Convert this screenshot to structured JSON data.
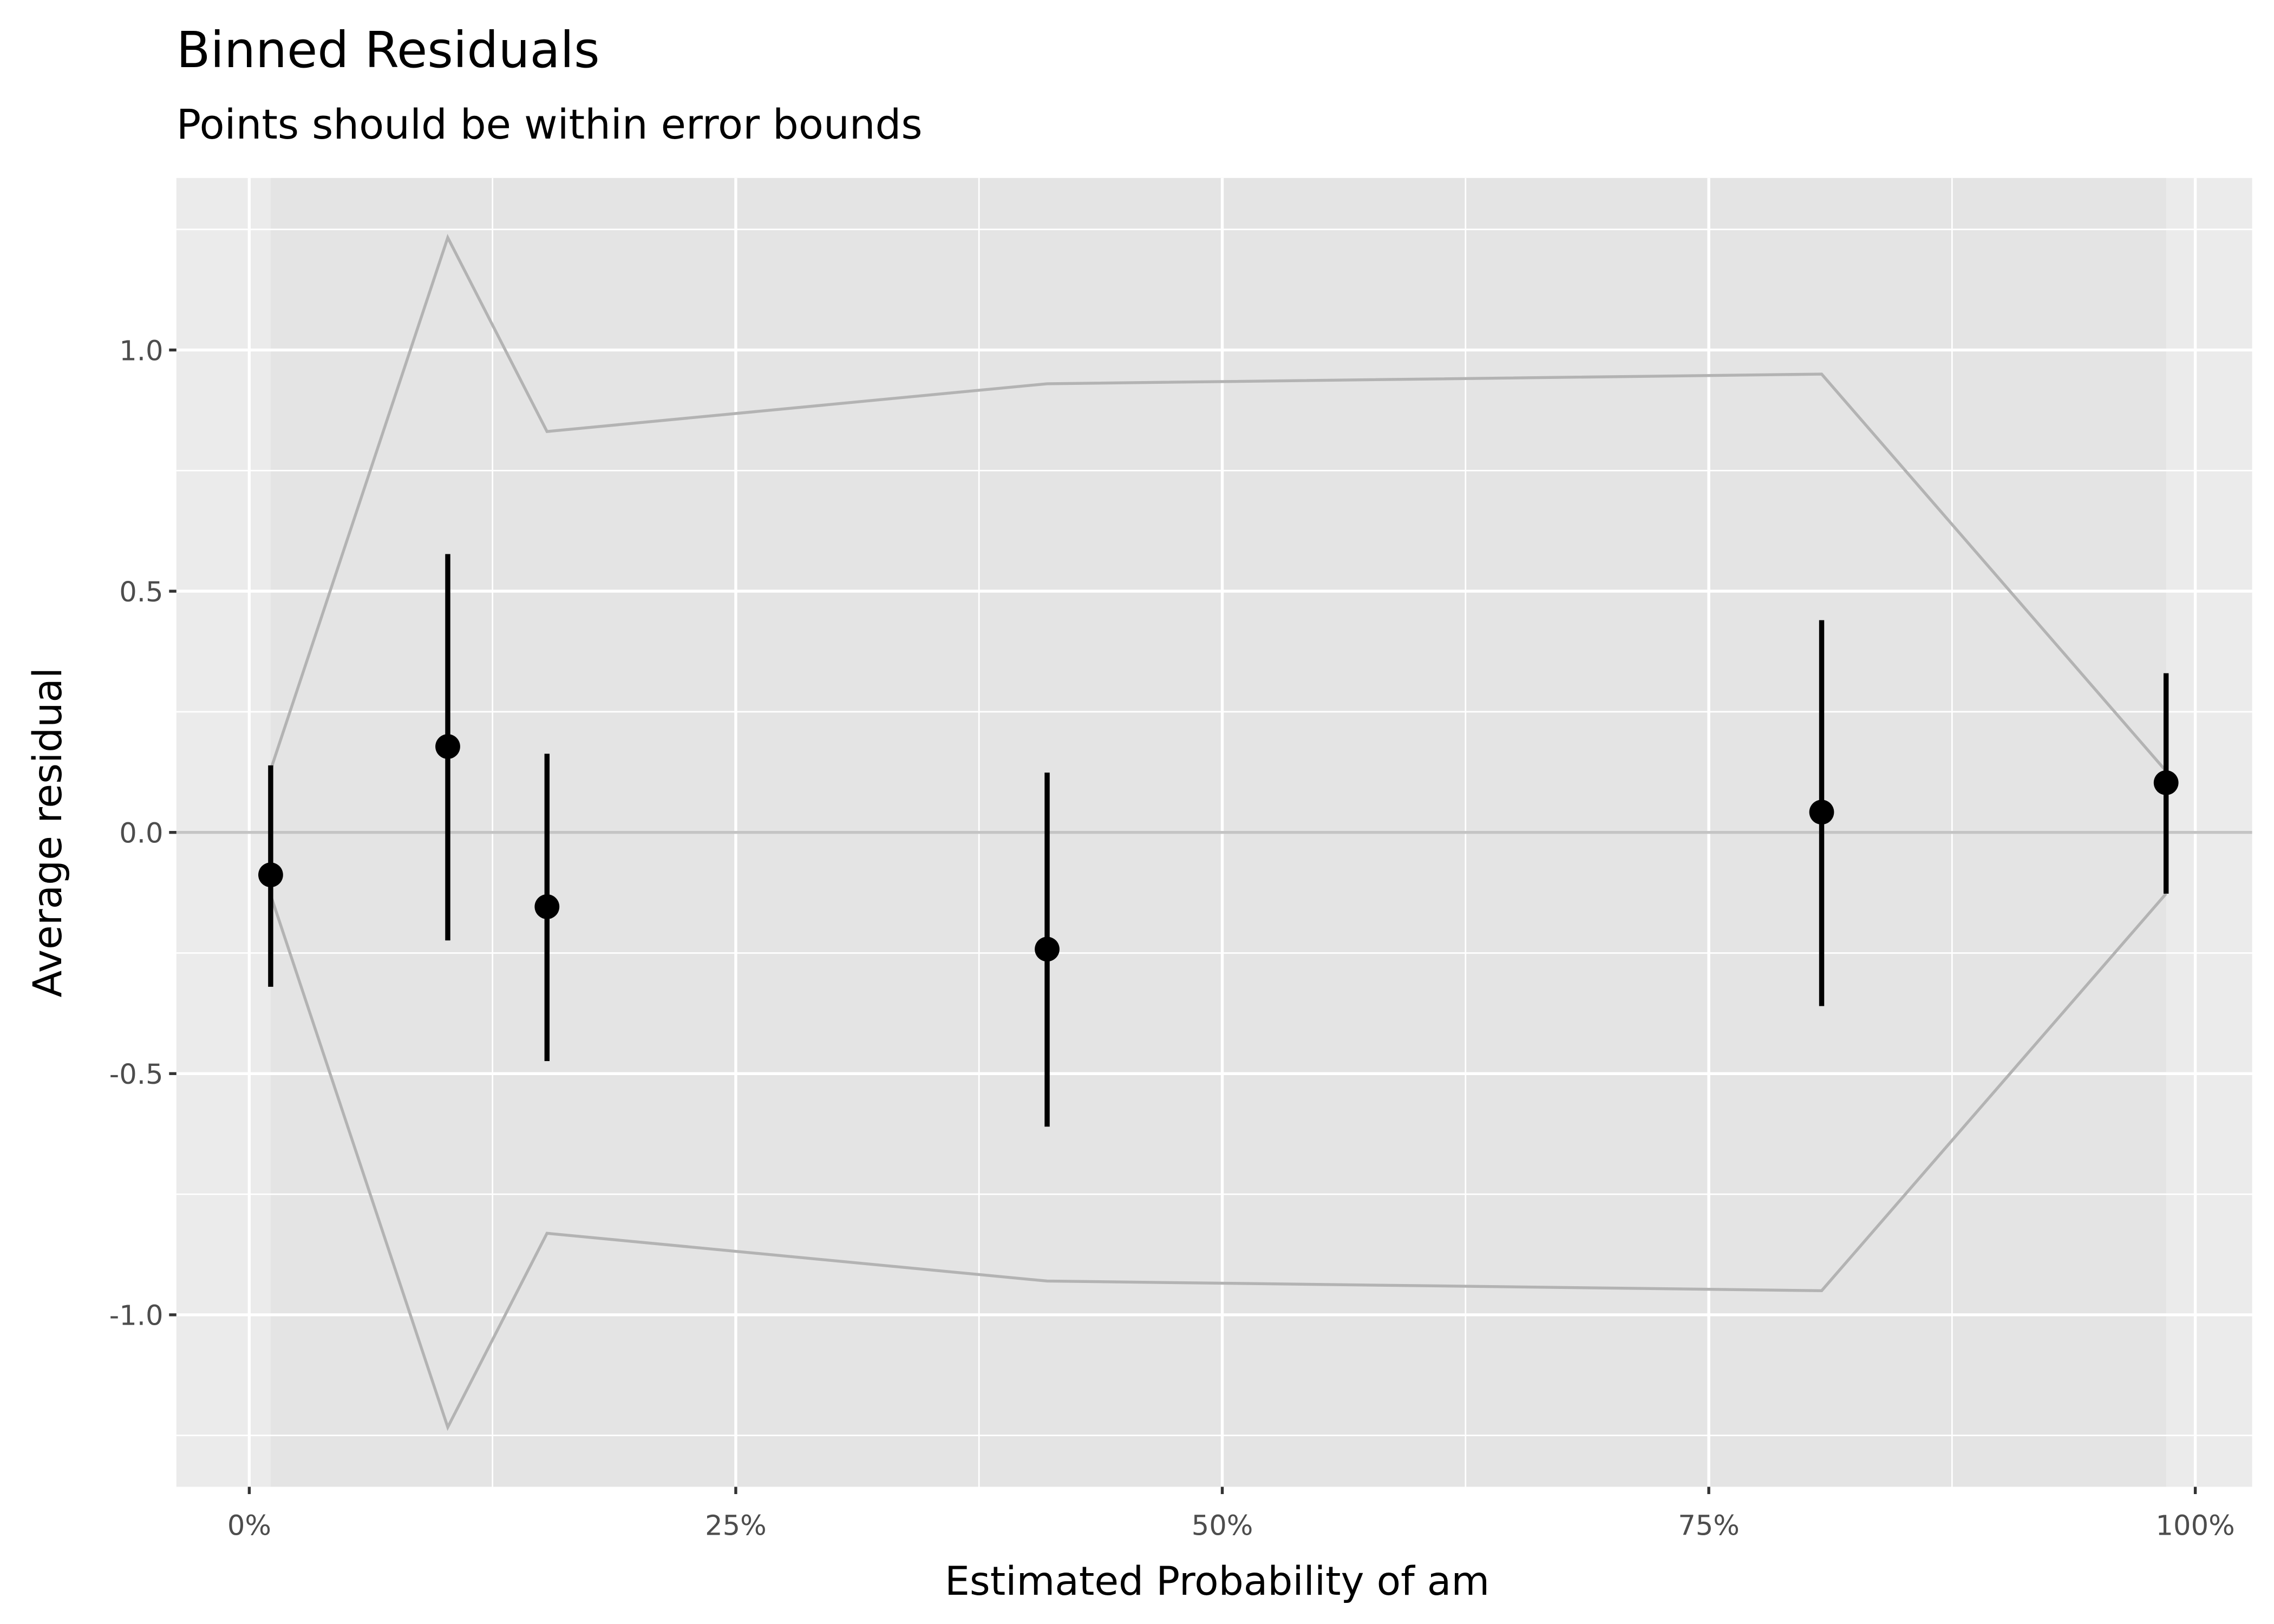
{
  "chart_data": {
    "type": "scatter",
    "title": "Binned Residuals",
    "subtitle": "Points should be within error bounds",
    "xlabel": "Estimated Probability of am",
    "ylabel": "Average residual",
    "xlim": [
      -0.015,
      1.028
    ],
    "ylim": [
      -1.345,
      1.345
    ],
    "x_ticks": [
      0,
      0.25,
      0.5,
      0.75,
      1.0
    ],
    "x_tick_labels": [
      "0%",
      "25%",
      "50%",
      "75%",
      "100%"
    ],
    "y_ticks": [
      -1.0,
      -0.5,
      0.0,
      0.5,
      1.0
    ],
    "y_tick_labels": [
      "-1.0",
      "-0.5",
      "0.0",
      "0.5",
      "1.0"
    ],
    "grid": true,
    "points": [
      {
        "x": 0.011,
        "y": -0.088,
        "ci_low": -0.32,
        "ci_high": 0.139,
        "bound": 0.13
      },
      {
        "x": 0.102,
        "y": 0.178,
        "ci_low": -0.224,
        "ci_high": 0.577,
        "bound": 1.233
      },
      {
        "x": 0.153,
        "y": -0.154,
        "ci_low": -0.474,
        "ci_high": 0.163,
        "bound": 0.831
      },
      {
        "x": 0.41,
        "y": -0.242,
        "ci_low": -0.61,
        "ci_high": 0.124,
        "bound": 0.93
      },
      {
        "x": 0.808,
        "y": 0.042,
        "ci_low": -0.36,
        "ci_high": 0.44,
        "bound": 0.95
      },
      {
        "x": 0.985,
        "y": 0.103,
        "ci_low": -0.127,
        "ci_high": 0.33,
        "bound": 0.127
      }
    ],
    "colors": {
      "point": "#000000",
      "bounds": "#b3b3b3",
      "panel": "#ebebeb",
      "inner_band": "#e4e4e4",
      "zero_line": "#c4c4c4"
    }
  }
}
